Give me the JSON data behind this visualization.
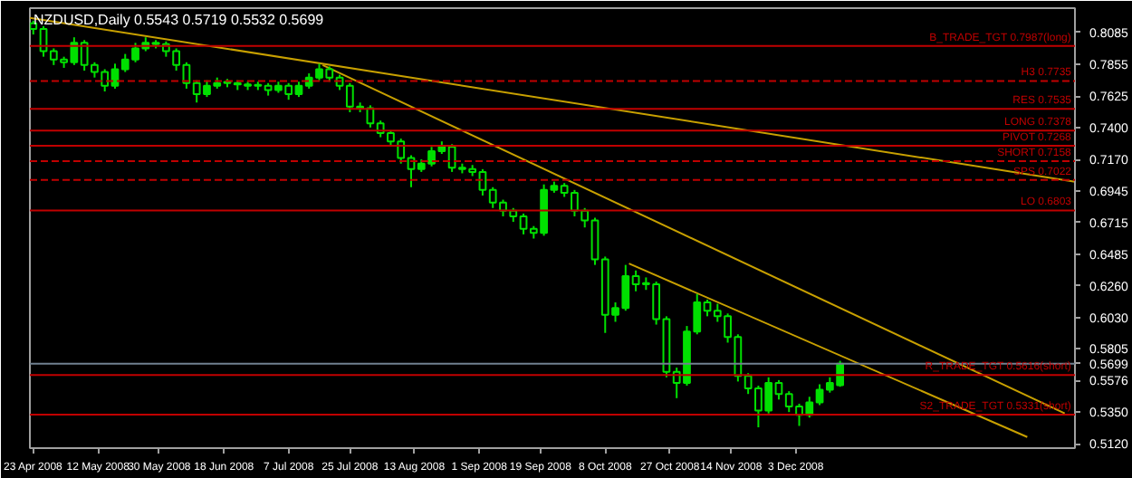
{
  "chart_data": {
    "type": "candlestick",
    "title": "NZDUSD,Daily  0.5543 0.5719 0.5532 0.5699",
    "color": "#00e000",
    "x": [
      "2008-04-23",
      "2008-04-26",
      "2008-04-29",
      "2008-05-02",
      "2008-05-05",
      "2008-05-08",
      "2008-05-11",
      "2008-05-14",
      "2008-05-17",
      "2008-05-20",
      "2008-05-23",
      "2008-05-26",
      "2008-05-29",
      "2008-06-01",
      "2008-06-04",
      "2008-06-07",
      "2008-06-10",
      "2008-06-13",
      "2008-06-16",
      "2008-06-19",
      "2008-06-22",
      "2008-06-25",
      "2008-06-28",
      "2008-07-01",
      "2008-07-04",
      "2008-07-07",
      "2008-07-10",
      "2008-07-13",
      "2008-07-16",
      "2008-07-19",
      "2008-07-22",
      "2008-07-25",
      "2008-07-28",
      "2008-07-31",
      "2008-08-03",
      "2008-08-06",
      "2008-08-09",
      "2008-08-12",
      "2008-08-15",
      "2008-08-18",
      "2008-08-21",
      "2008-08-24",
      "2008-08-27",
      "2008-08-30",
      "2008-09-02",
      "2008-09-05",
      "2008-09-08",
      "2008-09-11",
      "2008-09-14",
      "2008-09-17",
      "2008-09-20",
      "2008-09-23",
      "2008-09-26",
      "2008-09-29",
      "2008-10-02",
      "2008-10-05",
      "2008-10-08",
      "2008-10-11",
      "2008-10-14",
      "2008-10-17",
      "2008-10-20",
      "2008-10-23",
      "2008-10-26",
      "2008-10-29",
      "2008-11-01",
      "2008-11-04",
      "2008-11-07",
      "2008-11-10",
      "2008-11-13",
      "2008-11-16",
      "2008-11-19",
      "2008-11-22",
      "2008-11-25",
      "2008-11-28",
      "2008-12-01",
      "2008-12-04",
      "2008-12-07",
      "2008-12-10",
      "2008-12-13",
      "2008-12-16"
    ],
    "ohlc": [
      [
        0.815,
        0.817,
        0.807,
        0.811
      ],
      [
        0.811,
        0.813,
        0.791,
        0.795
      ],
      [
        0.795,
        0.797,
        0.785,
        0.789
      ],
      [
        0.789,
        0.791,
        0.783,
        0.787
      ],
      [
        0.787,
        0.805,
        0.785,
        0.801
      ],
      [
        0.801,
        0.803,
        0.781,
        0.785
      ],
      [
        0.785,
        0.787,
        0.776,
        0.78
      ],
      [
        0.78,
        0.782,
        0.766,
        0.77
      ],
      [
        0.77,
        0.786,
        0.768,
        0.782
      ],
      [
        0.782,
        0.793,
        0.78,
        0.789
      ],
      [
        0.789,
        0.801,
        0.787,
        0.797
      ],
      [
        0.797,
        0.805,
        0.795,
        0.801
      ],
      [
        0.801,
        0.803,
        0.797,
        0.8
      ],
      [
        0.8,
        0.802,
        0.791,
        0.795
      ],
      [
        0.795,
        0.797,
        0.781,
        0.785
      ],
      [
        0.785,
        0.787,
        0.768,
        0.772
      ],
      [
        0.772,
        0.774,
        0.758,
        0.764
      ],
      [
        0.764,
        0.774,
        0.762,
        0.77
      ],
      [
        0.77,
        0.776,
        0.768,
        0.772
      ],
      [
        0.772,
        0.775,
        0.769,
        0.772
      ],
      [
        0.772,
        0.774,
        0.767,
        0.771
      ],
      [
        0.771,
        0.773,
        0.767,
        0.77
      ],
      [
        0.77,
        0.773,
        0.767,
        0.77
      ],
      [
        0.77,
        0.772,
        0.763,
        0.767
      ],
      [
        0.767,
        0.773,
        0.765,
        0.77
      ],
      [
        0.77,
        0.772,
        0.76,
        0.764
      ],
      [
        0.764,
        0.773,
        0.762,
        0.77
      ],
      [
        0.77,
        0.779,
        0.768,
        0.776
      ],
      [
        0.776,
        0.786,
        0.774,
        0.782
      ],
      [
        0.782,
        0.784,
        0.773,
        0.776
      ],
      [
        0.776,
        0.778,
        0.767,
        0.77
      ],
      [
        0.77,
        0.772,
        0.751,
        0.755
      ],
      [
        0.755,
        0.758,
        0.751,
        0.754
      ],
      [
        0.754,
        0.756,
        0.74,
        0.743
      ],
      [
        0.743,
        0.745,
        0.733,
        0.736
      ],
      [
        0.736,
        0.738,
        0.727,
        0.73
      ],
      [
        0.73,
        0.732,
        0.714,
        0.718
      ],
      [
        0.718,
        0.72,
        0.697,
        0.71
      ],
      [
        0.71,
        0.717,
        0.708,
        0.714
      ],
      [
        0.714,
        0.726,
        0.712,
        0.723
      ],
      [
        0.723,
        0.73,
        0.721,
        0.726
      ],
      [
        0.726,
        0.728,
        0.708,
        0.711
      ],
      [
        0.711,
        0.714,
        0.707,
        0.71
      ],
      [
        0.71,
        0.713,
        0.705,
        0.708
      ],
      [
        0.708,
        0.71,
        0.691,
        0.695
      ],
      [
        0.695,
        0.697,
        0.682,
        0.686
      ],
      [
        0.686,
        0.688,
        0.676,
        0.68
      ],
      [
        0.68,
        0.682,
        0.672,
        0.676
      ],
      [
        0.676,
        0.678,
        0.663,
        0.667
      ],
      [
        0.667,
        0.669,
        0.66,
        0.664
      ],
      [
        0.664,
        0.699,
        0.662,
        0.695
      ],
      [
        0.695,
        0.701,
        0.693,
        0.698
      ],
      [
        0.698,
        0.7,
        0.69,
        0.693
      ],
      [
        0.693,
        0.695,
        0.676,
        0.68
      ],
      [
        0.68,
        0.682,
        0.668,
        0.673
      ],
      [
        0.673,
        0.675,
        0.641,
        0.645
      ],
      [
        0.645,
        0.647,
        0.592,
        0.605
      ],
      [
        0.605,
        0.614,
        0.6,
        0.61
      ],
      [
        0.61,
        0.641,
        0.608,
        0.633
      ],
      [
        0.633,
        0.637,
        0.622,
        0.627
      ],
      [
        0.627,
        0.632,
        0.623,
        0.627
      ],
      [
        0.627,
        0.629,
        0.598,
        0.602
      ],
      [
        0.602,
        0.604,
        0.56,
        0.564
      ],
      [
        0.564,
        0.567,
        0.545,
        0.556
      ],
      [
        0.556,
        0.597,
        0.554,
        0.593
      ],
      [
        0.593,
        0.62,
        0.591,
        0.614
      ],
      [
        0.614,
        0.616,
        0.604,
        0.608
      ],
      [
        0.608,
        0.613,
        0.6,
        0.604
      ],
      [
        0.604,
        0.606,
        0.585,
        0.589
      ],
      [
        0.589,
        0.591,
        0.557,
        0.561
      ],
      [
        0.561,
        0.563,
        0.548,
        0.552
      ],
      [
        0.552,
        0.554,
        0.524,
        0.536
      ],
      [
        0.536,
        0.56,
        0.534,
        0.556
      ],
      [
        0.556,
        0.558,
        0.544,
        0.548
      ],
      [
        0.548,
        0.55,
        0.535,
        0.539
      ],
      [
        0.539,
        0.541,
        0.525,
        0.533
      ],
      [
        0.533,
        0.546,
        0.531,
        0.542
      ],
      [
        0.542,
        0.555,
        0.54,
        0.551
      ],
      [
        0.551,
        0.56,
        0.549,
        0.556
      ],
      [
        0.5543,
        0.5719,
        0.5532,
        0.5699
      ]
    ],
    "series": [
      {
        "type": "line",
        "color": "#c8a000",
        "x": [
          "2008-04-22",
          "2009-02-23"
        ],
        "values": [
          0.819,
          0.701
        ]
      },
      {
        "type": "line",
        "color": "#c8a000",
        "x": [
          "2008-07-17",
          "2009-02-20"
        ],
        "values": [
          0.785,
          0.534
        ]
      },
      {
        "type": "line",
        "color": "#c8a000",
        "x": [
          "2008-10-15",
          "2009-02-09"
        ],
        "values": [
          0.642,
          0.517
        ]
      }
    ],
    "ref_lines": [
      {
        "axis": "y",
        "value": 0.7987,
        "label": "B_TRADE_TGT 0.7987(long)",
        "color": "#c00000",
        "line_style": "solid"
      },
      {
        "axis": "y",
        "value": 0.7735,
        "label": "H3 0.7735",
        "color": "#c00000",
        "line_style": "dashed"
      },
      {
        "axis": "y",
        "value": 0.7535,
        "label": "RES 0.7535",
        "color": "#c00000",
        "line_style": "solid"
      },
      {
        "axis": "y",
        "value": 0.7378,
        "label": "LONG 0.7378",
        "color": "#c00000",
        "line_style": "solid"
      },
      {
        "axis": "y",
        "value": 0.7268,
        "label": "PIVOT 0.7268",
        "color": "#c00000",
        "line_style": "solid"
      },
      {
        "axis": "y",
        "value": 0.7158,
        "label": "SHORT 0.7158",
        "color": "#c00000",
        "line_style": "dashed"
      },
      {
        "axis": "y",
        "value": 0.7022,
        "label": "SPS 0.7022",
        "color": "#c00000",
        "line_style": "dashed"
      },
      {
        "axis": "y",
        "value": 0.6803,
        "label": "LO 0.6803",
        "color": "#c00000",
        "line_style": "solid"
      },
      {
        "axis": "y",
        "value": 0.5699,
        "color": "#708090",
        "line_style": "solid"
      },
      {
        "axis": "y",
        "value": 0.5616,
        "label": "R_TRADE_TGT 0.5616(short)",
        "color": "#c00000",
        "line_style": "solid"
      },
      {
        "axis": "y",
        "value": 0.5331,
        "label": "S2_TRADE_TGT 0.5331(short)",
        "color": "#c00000",
        "line_style": "solid"
      }
    ],
    "xlim": [
      "2008-04-22",
      "2009-02-23"
    ],
    "xticks": [
      {
        "value": "2008-04-23",
        "label": "23 Apr 2008"
      },
      {
        "value": "2008-05-12",
        "label": "12 May 2008"
      },
      {
        "value": "2008-05-30",
        "label": "30 May 2008"
      },
      {
        "value": "2008-06-18",
        "label": "18 Jun 2008"
      },
      {
        "value": "2008-07-07",
        "label": "7 Jul 2008"
      },
      {
        "value": "2008-07-25",
        "label": "25 Jul 2008"
      },
      {
        "value": "2008-08-13",
        "label": "13 Aug 2008"
      },
      {
        "value": "2008-09-01",
        "label": "1 Sep 2008"
      },
      {
        "value": "2008-09-19",
        "label": "19 Sep 2008"
      },
      {
        "value": "2008-10-08",
        "label": "8 Oct 2008"
      },
      {
        "value": "2008-10-27",
        "label": "27 Oct 2008"
      },
      {
        "value": "2008-11-14",
        "label": "14 Nov 2008"
      },
      {
        "value": "2008-12-03",
        "label": "3 Dec 2008"
      }
    ],
    "ylim": [
      0.509,
      0.826
    ],
    "yticks": [
      0.8085,
      0.7855,
      0.7625,
      {
        "value": 0.74,
        "label": "0.7400"
      },
      {
        "value": 0.717,
        "label": "0.7170"
      },
      0.6945,
      0.6715,
      0.6485,
      {
        "value": 0.626,
        "label": "0.6260"
      },
      {
        "value": 0.603,
        "label": "0.6030"
      },
      0.5805,
      0.5576,
      {
        "value": 0.535,
        "label": "0.5350"
      },
      {
        "value": 0.512,
        "label": "0.5120"
      },
      0.5699
    ]
  }
}
